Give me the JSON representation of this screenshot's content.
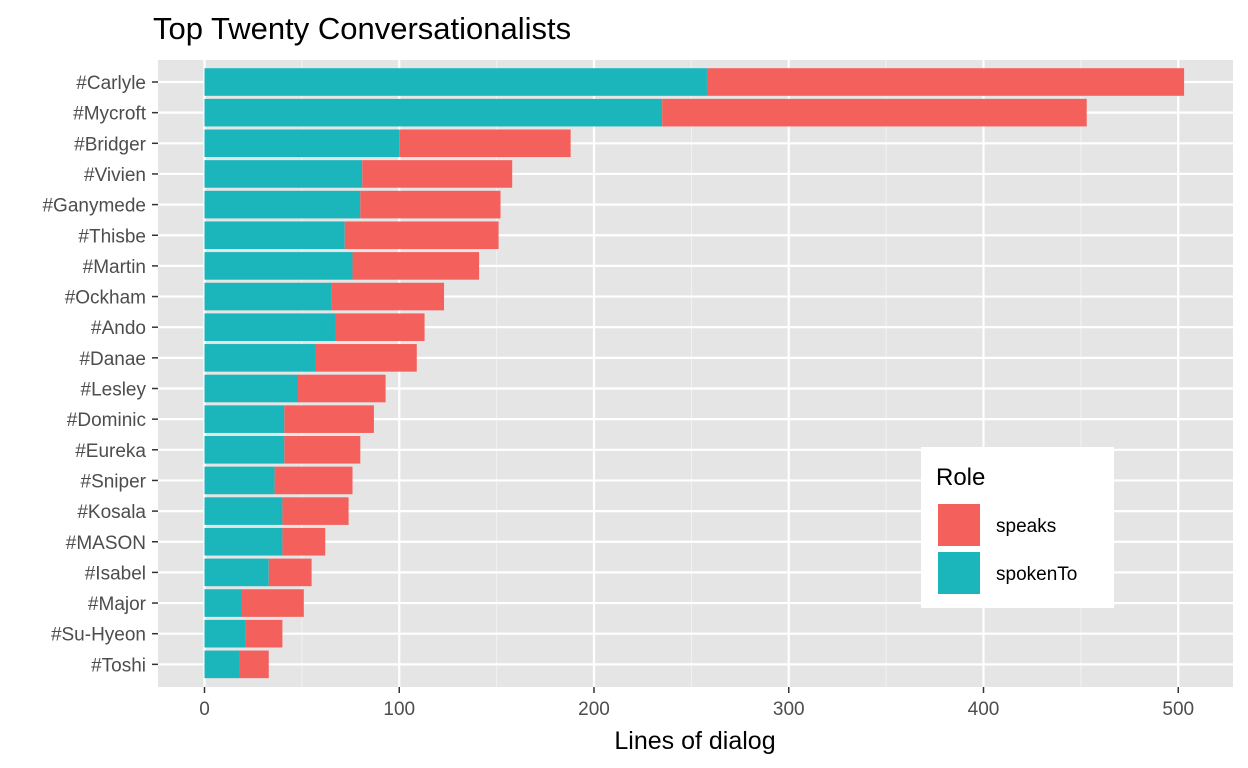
{
  "chart_data": {
    "type": "bar",
    "orientation": "horizontal",
    "stacked": true,
    "title": "Top Twenty Conversationalists",
    "xlabel": "Lines of dialog",
    "ylabel": "",
    "xlim": [
      0,
      525
    ],
    "xticks": [
      0,
      100,
      200,
      300,
      400,
      500
    ],
    "xtick_labels": [
      "0",
      "100",
      "200",
      "300",
      "400",
      "500"
    ],
    "grid": true,
    "background": "#e5e5e5",
    "legend": {
      "title": "Role",
      "placement": "bottom-right, inside"
    },
    "categories": [
      "#Carlyle",
      "#Mycroft",
      "#Bridger",
      "#Vivien",
      "#Ganymede",
      "#Thisbe",
      "#Martin",
      "#Ockham",
      "#Ando",
      "#Danae",
      "#Lesley",
      "#Dominic",
      "#Eureka",
      "#Sniper",
      "#Kosala",
      "#MASON",
      "#Isabel",
      "#Major",
      "#Su-Hyeon",
      "#Toshi"
    ],
    "series": [
      {
        "name": "spokenTo",
        "color": "#1ab6bb",
        "values": [
          258,
          235,
          100,
          81,
          80,
          72,
          76,
          65,
          67,
          57,
          48,
          41,
          41,
          36,
          40,
          40,
          33,
          19,
          21,
          18
        ]
      },
      {
        "name": "speaks",
        "color": "#f4615d",
        "values": [
          245,
          218,
          88,
          77,
          72,
          79,
          65,
          58,
          46,
          52,
          45,
          46,
          39,
          40,
          34,
          22,
          22,
          32,
          19,
          15
        ]
      }
    ],
    "legend_order": [
      "speaks",
      "spokenTo"
    ]
  }
}
